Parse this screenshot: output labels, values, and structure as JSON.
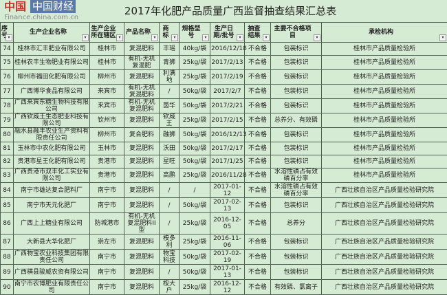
{
  "title": "2017年化肥产品质量广西监督抽查结果汇总表",
  "watermark": {
    "logo_text": "中国财经",
    "url": "Finance.china.com.cn"
  },
  "columns": [
    "序号",
    "生产企业名称",
    "生产企业所在辖区",
    "产品名称",
    "商标",
    "规格型号",
    "生产日期/批号",
    "抽查结果",
    "主要不合格项目",
    "承检机构"
  ],
  "filter_icon": "dropdown-arrow-icon",
  "rows": [
    [
      "74",
      "桂林市汇丰肥业有限公司",
      "桂林市",
      "复混肥料",
      "丰瑶",
      "40kg/袋",
      "2016/12/18",
      "不合格",
      "包装标识",
      "桂林市产品质量检验所"
    ],
    [
      "75",
      "桂林农丰生物肥业有限公司",
      "桂林市",
      "有机-无机复混肥",
      "青狮",
      "25kg/袋",
      "2017/2/13",
      "不合格",
      "包装标识",
      "桂林市产品质量检验所"
    ],
    [
      "76",
      "柳州市福田化肥有限公司",
      "柳州市",
      "复混肥料",
      "利满地",
      "25kg/袋",
      "2017/2/19",
      "不合格",
      "包装标识",
      "桂林市产品质量检验所"
    ],
    [
      "77",
      "广西博华食品有限公司",
      "来宾市",
      "有机-无机复混肥料",
      "/",
      "50kg/袋",
      "2017/2/7",
      "不合格",
      "包装标识",
      "桂林市产品质量检验所"
    ],
    [
      "78",
      "广西来宾东糖生物科技有限公司",
      "来宾市",
      "有机-无机复混肥料",
      "茵华",
      "50kg/袋",
      "2017/2/21",
      "不合格",
      "包装标识",
      "桂林市产品质量检验所"
    ],
    [
      "79",
      "广西钦威王生态肥业科技有限公司",
      "钦州市",
      "复混肥料",
      "钦威王",
      "25kg/袋",
      "2017/2/15",
      "不合格",
      "总养分、有效磷",
      "桂林市产品质量检验所"
    ],
    [
      "80",
      "融水县融丰农业生产资料有限责任公司",
      "柳州市",
      "复合肥料",
      "融狮",
      "50kg/袋",
      "2016/12/13",
      "不合格",
      "包装标识",
      "桂林市产品质量检验所"
    ],
    [
      "81",
      "玉林市中农化肥有限公司",
      "玉林市",
      "复混肥料",
      "沃田",
      "50kg/袋",
      "2017/2/17",
      "不合格",
      "包装标识",
      "桂林市产品质量检验所"
    ],
    [
      "82",
      "贵港市星王化肥有限公司",
      "贵港市",
      "复混肥料",
      "星旺",
      "50kg/袋",
      "2017/1/25",
      "不合格",
      "包装标识",
      "桂林市产品质量检验所"
    ],
    [
      "83",
      "广西贵港市双丰化工实业有限公司",
      "贵港市",
      "复混肥料",
      "高鹏",
      "25kg/袋",
      "2016/11/28",
      "不合格",
      "水溶性磷占有效磷百分率",
      "桂林市产品质量检验所"
    ],
    [
      "84",
      "南宁市雄达复合肥料厂",
      "南宁市",
      "复混肥料",
      "/",
      "/",
      "2017-01-12",
      "不合格",
      "水溶性磷占有效磷百分率",
      "广西壮族自治区产品质量检验研究院"
    ],
    [
      "85",
      "南宁市天元化肥厂",
      "南宁市",
      "复混肥料",
      "/",
      "50kg/袋",
      "2017-02-13",
      "不合格",
      "包装标识",
      "广西壮族自治区产品质量检验研究院"
    ],
    [
      "86",
      "广西上上糖业有限公司",
      "防城港市",
      "有机-无机复混肥料II型",
      "/",
      "25kg/袋",
      "2016-12-05",
      "不合格",
      "总养分",
      "广西壮族自治区产品质量检验研究院"
    ],
    [
      "87",
      "大新县大华化肥厂",
      "崇左市",
      "复混肥料",
      "桉多利",
      "25kg/袋",
      "2016-11-06",
      "不合格",
      "包装标识",
      "广西壮族自治区产品质量检验研究院"
    ],
    [
      "88",
      "广西物宝农业科技集团有限责任公司",
      "南宁市",
      "复混肥料",
      "物宝科技",
      "50kg/袋",
      "2017-02-19",
      "不合格",
      "包装标识",
      "广西壮族自治区产品质量检验研究院"
    ],
    [
      "89",
      "广西横县骏威农资有限公司",
      "南宁市",
      "复混肥料",
      "/",
      "50kg/袋",
      "2017-01-13",
      "不合格",
      "包装标识",
      "广西壮族自治区产品质量检验研究院"
    ],
    [
      "90",
      "南宁市农博肥业有限责任公司",
      "南宁市",
      "复混肥料",
      "桉大户",
      "25kg/袋",
      "2016-12-12",
      "不合格",
      "有效磷、氯离子",
      "广西壮族自治区产品质量检验研究院"
    ]
  ]
}
